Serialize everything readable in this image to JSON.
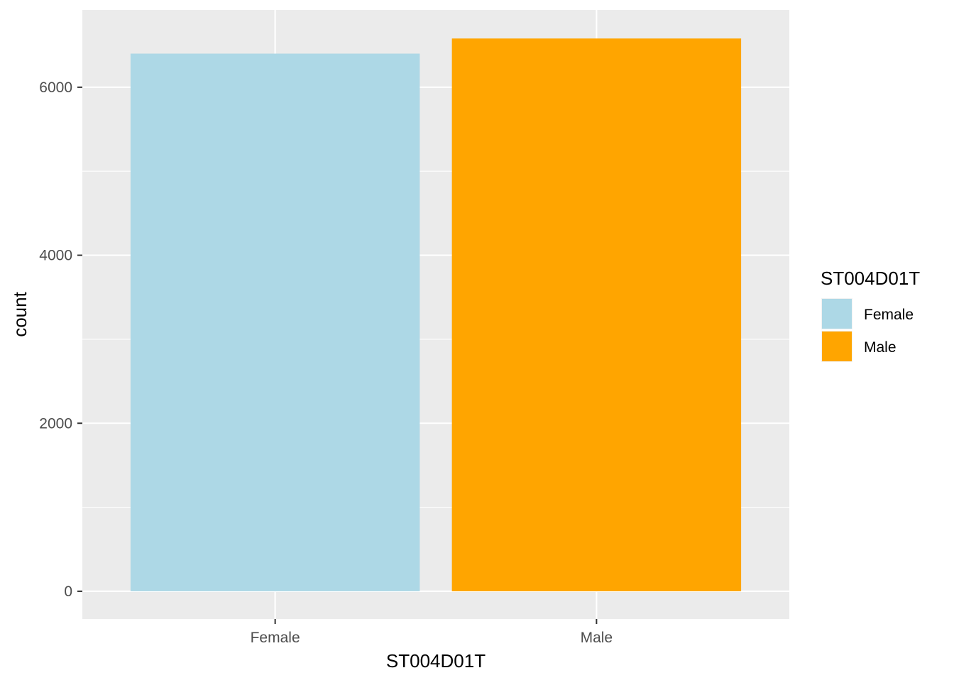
{
  "chart_data": {
    "type": "bar",
    "categories": [
      "Female",
      "Male"
    ],
    "values": [
      6400,
      6580
    ],
    "xlabel": "ST004D01T",
    "ylabel": "count",
    "ylim": [
      -330,
      6920
    ],
    "y_ticks": [
      0,
      2000,
      4000,
      6000
    ],
    "y_tick_labels": [
      "0",
      "2000",
      "4000",
      "6000"
    ],
    "grid": true,
    "legend": {
      "title": "ST004D01T",
      "position": "right",
      "entries": [
        "Female",
        "Male"
      ]
    },
    "colors": {
      "Female": "#add8e6",
      "Male": "#ffa500",
      "panel_background": "#ebebeb",
      "grid_line": "#ffffff",
      "tick_mark": "#333333"
    }
  }
}
